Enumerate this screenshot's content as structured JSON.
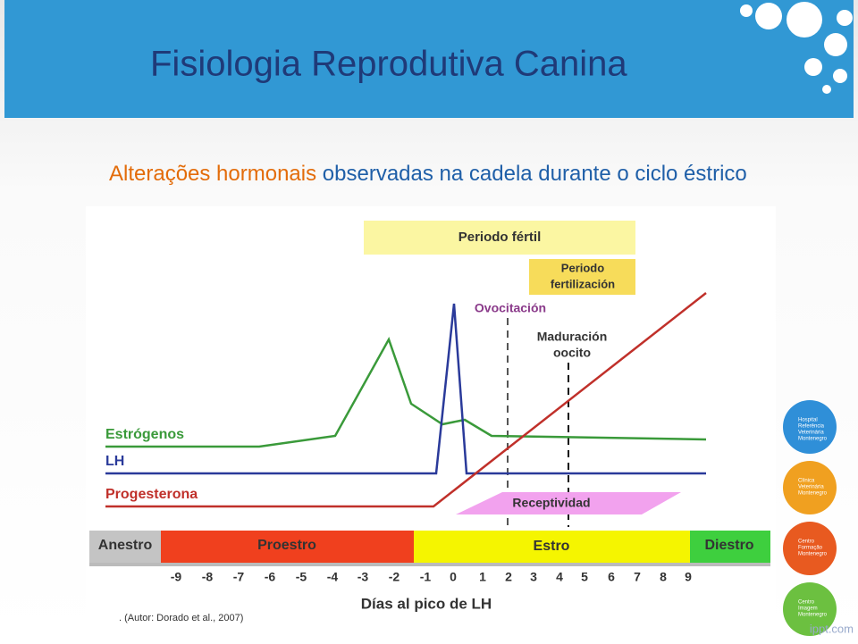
{
  "header": {
    "title": "Fisiologia Reprodutiva Canina"
  },
  "subtitle": {
    "highlight": "Alterações hormonais",
    "rest": "observadas na cadela durante o ciclo éstrico"
  },
  "figure": {
    "fertile_period": "Periodo fértil",
    "fertilization_period": [
      "Periodo",
      "fertilización"
    ],
    "ovulation": "Ovocitación",
    "maturation": [
      "Maduración",
      "oocito"
    ],
    "hormones": [
      "Estrógenos",
      "LH",
      "Progesterona"
    ],
    "receptivity": "Receptividad",
    "phases": [
      "Anestro",
      "Proestro",
      "Estro",
      "Diestro"
    ],
    "days": [
      -9,
      -8,
      -7,
      -6,
      -5,
      -4,
      -3,
      -2,
      -1,
      0,
      1,
      2,
      3,
      4,
      5,
      6,
      7,
      8,
      9
    ],
    "x_label": "Días al pico de LH"
  },
  "caption": ". (Autor: Dorado et al., 2007)",
  "logos": [
    [
      "Hospital",
      "Referência",
      "Veterinária",
      "Montenegro"
    ],
    [
      "Clínica",
      "Veterinária",
      "Montenegro"
    ],
    [
      "Centro",
      "Formação",
      "Montenegro"
    ],
    [
      "Centro",
      "Imagem",
      "Montenegro"
    ]
  ],
  "footer": "ippt.com"
}
